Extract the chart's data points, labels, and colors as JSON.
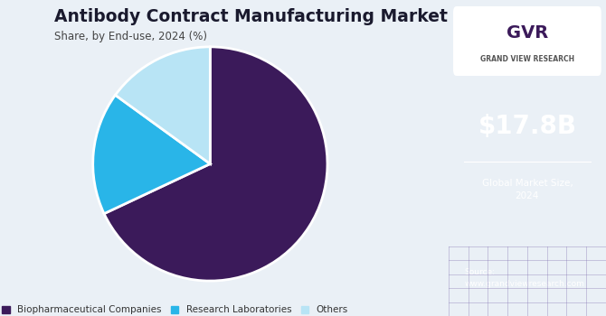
{
  "title": "Antibody Contract Manufacturing Market",
  "subtitle": "Share, by End-use, 2024 (%)",
  "slices": [
    {
      "label": "Biopharmaceutical Companies",
      "value": 68,
      "color": "#3b1a5a"
    },
    {
      "label": "Research Laboratories",
      "value": 17,
      "color": "#29b5e8"
    },
    {
      "label": "Others",
      "value": 15,
      "color": "#b8e4f5"
    }
  ],
  "startangle": 90,
  "background_color": "#eaf0f6",
  "right_panel_color": "#3b1a5a",
  "market_size": "$17.8B",
  "market_size_label": "Global Market Size,\n2024",
  "source_text": "Source:\nwww.grandviewresearch.com",
  "legend_labels": [
    "Biopharmaceutical Companies",
    "Research Laboratories",
    "Others"
  ],
  "legend_colors": [
    "#3b1a5a",
    "#29b5e8",
    "#b8e4f5"
  ]
}
